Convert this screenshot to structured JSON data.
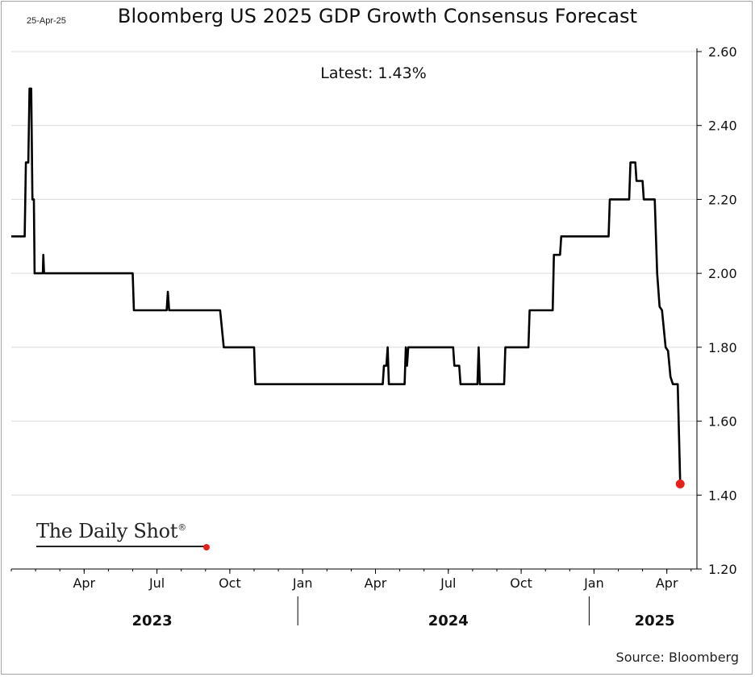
{
  "header": {
    "date": "25-Apr-25",
    "title": "Bloomberg US 2025 GDP Growth Consensus Forecast",
    "latest": "Latest:  1.43%"
  },
  "footer": {
    "logo_text": "The Daily Shot",
    "logo_mark": "®",
    "source": "Source: Bloomberg"
  },
  "chart_data": {
    "type": "line",
    "title": "Bloomberg US 2025 GDP Growth Consensus Forecast",
    "ylabel": "",
    "xlabel": "",
    "ylim": [
      1.2,
      2.6
    ],
    "xlim_months": [
      0,
      28.8
    ],
    "y_ticks": [
      "2.60",
      "2.40",
      "2.20",
      "2.00",
      "1.80",
      "1.60",
      "1.40",
      "1.20"
    ],
    "x_ticks": [
      {
        "label": "Apr",
        "month": 3
      },
      {
        "label": "Jul",
        "month": 6
      },
      {
        "label": "Oct",
        "month": 9
      },
      {
        "label": "Jan",
        "month": 12
      },
      {
        "label": "Apr",
        "month": 15
      },
      {
        "label": "Jul",
        "month": 18
      },
      {
        "label": "Oct",
        "month": 21
      },
      {
        "label": "Jan",
        "month": 24
      },
      {
        "label": "Apr",
        "month": 27
      }
    ],
    "year_labels": [
      {
        "label": "2023",
        "center_month": 5.8
      },
      {
        "label": "2024",
        "center_month": 18.0
      },
      {
        "label": "2025",
        "center_month": 26.5
      }
    ],
    "year_dividers": [
      12,
      24
    ],
    "series": [
      {
        "name": "US 2025 GDP Growth Consensus",
        "color": "#000000",
        "points": [
          [
            0.0,
            2.1
          ],
          [
            0.55,
            2.1
          ],
          [
            0.6,
            2.3
          ],
          [
            0.7,
            2.3
          ],
          [
            0.75,
            2.5
          ],
          [
            0.82,
            2.5
          ],
          [
            0.87,
            2.2
          ],
          [
            0.93,
            2.2
          ],
          [
            0.96,
            2.0
          ],
          [
            1.3,
            2.0
          ],
          [
            1.32,
            2.05
          ],
          [
            1.35,
            2.0
          ],
          [
            5.0,
            2.0
          ],
          [
            5.05,
            1.9
          ],
          [
            6.4,
            1.9
          ],
          [
            6.45,
            1.95
          ],
          [
            6.5,
            1.9
          ],
          [
            8.6,
            1.9
          ],
          [
            8.75,
            1.8
          ],
          [
            10.0,
            1.8
          ],
          [
            10.05,
            1.7
          ],
          [
            15.3,
            1.7
          ],
          [
            15.35,
            1.75
          ],
          [
            15.45,
            1.75
          ],
          [
            15.5,
            1.8
          ],
          [
            15.55,
            1.7
          ],
          [
            16.2,
            1.7
          ],
          [
            16.25,
            1.8
          ],
          [
            16.3,
            1.75
          ],
          [
            16.35,
            1.8
          ],
          [
            18.2,
            1.8
          ],
          [
            18.25,
            1.75
          ],
          [
            18.45,
            1.75
          ],
          [
            18.5,
            1.7
          ],
          [
            19.2,
            1.7
          ],
          [
            19.25,
            1.8
          ],
          [
            19.3,
            1.7
          ],
          [
            20.3,
            1.7
          ],
          [
            20.35,
            1.8
          ],
          [
            21.3,
            1.8
          ],
          [
            21.35,
            1.9
          ],
          [
            22.3,
            1.9
          ],
          [
            22.35,
            2.05
          ],
          [
            22.6,
            2.05
          ],
          [
            22.65,
            2.1
          ],
          [
            24.6,
            2.1
          ],
          [
            24.65,
            2.2
          ],
          [
            25.45,
            2.2
          ],
          [
            25.5,
            2.3
          ],
          [
            25.7,
            2.3
          ],
          [
            25.75,
            2.25
          ],
          [
            26.0,
            2.25
          ],
          [
            26.05,
            2.2
          ],
          [
            26.5,
            2.2
          ],
          [
            26.6,
            2.0
          ],
          [
            26.7,
            1.91
          ],
          [
            26.8,
            1.9
          ],
          [
            26.95,
            1.8
          ],
          [
            27.05,
            1.79
          ],
          [
            27.15,
            1.72
          ],
          [
            27.25,
            1.7
          ],
          [
            27.45,
            1.7
          ],
          [
            27.55,
            1.43
          ]
        ]
      }
    ],
    "latest_point": {
      "month": 27.55,
      "value": 1.43,
      "color": "#e8201a"
    }
  }
}
